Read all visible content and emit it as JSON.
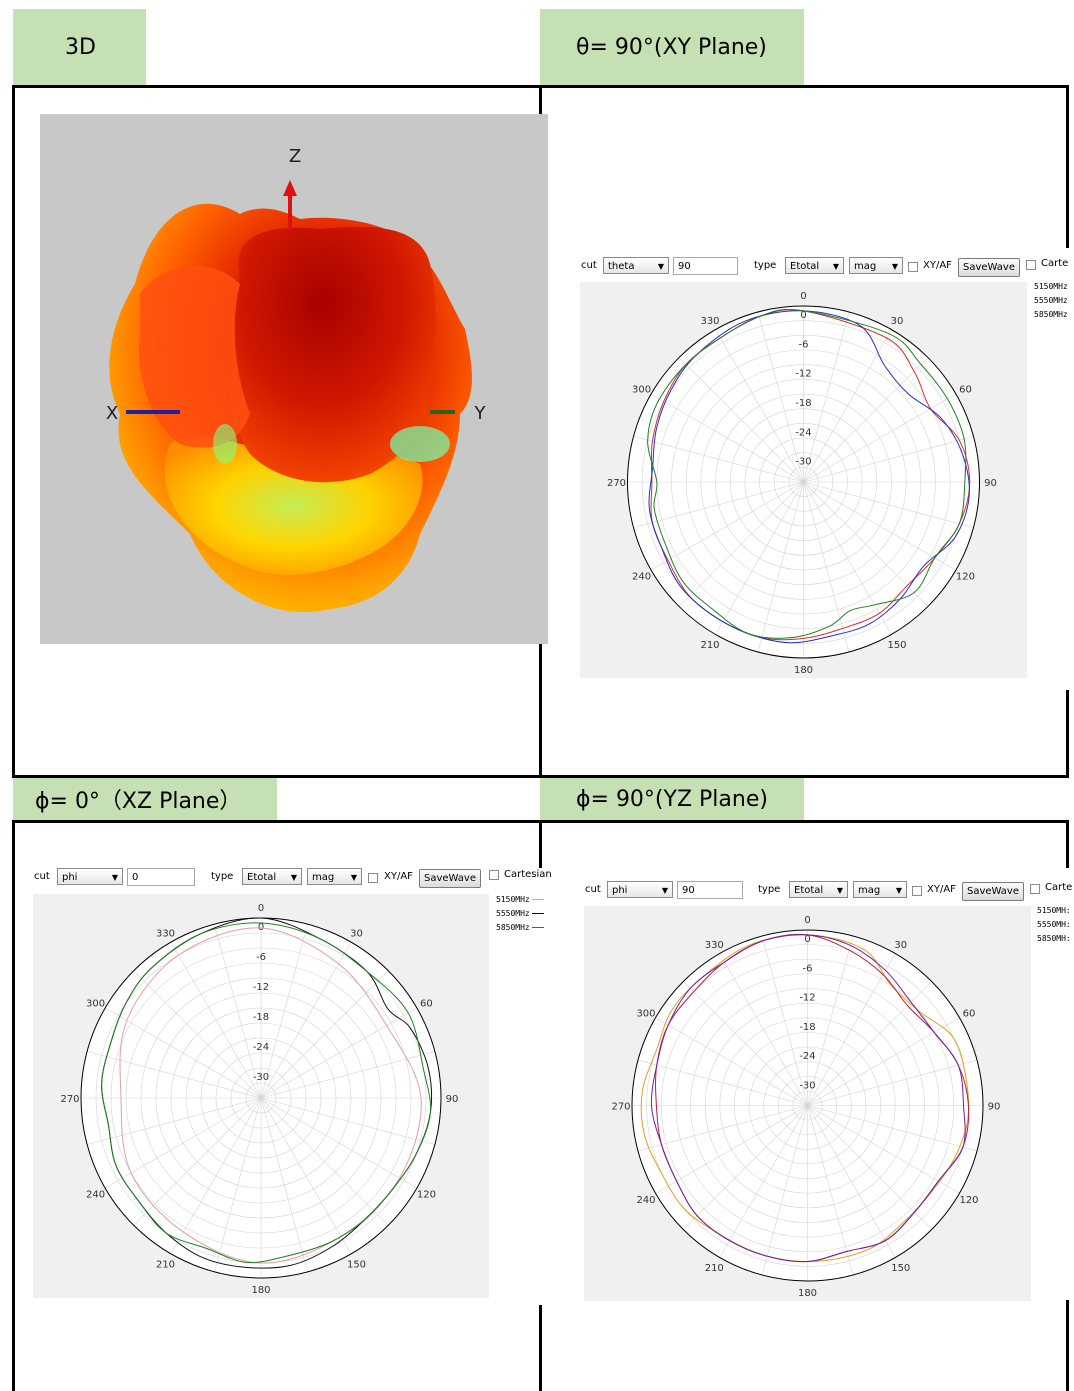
{
  "headers": {
    "p3d": "3D",
    "xy": "θ= 90°(XY Plane)",
    "xz": "ϕ= 0°（XZ Plane）",
    "yz": "ϕ= 90°(YZ Plane)"
  },
  "axes3d": {
    "x": "X",
    "y": "Y",
    "z": "Z"
  },
  "colors": {
    "header_bg": "#c5e0b3",
    "plot_bg": "#f0f0f0",
    "s5150_xy": "#d03030",
    "s5550_xy": "#2030c0",
    "s5850_xy": "#208020",
    "s5150_xz": "#e0a0a0",
    "s5550_xz": "#101010",
    "s5850_xz": "#208020",
    "s5150_yz": "#e0a020",
    "s5550_yz": "#b02040",
    "s5850_yz": "#7020a0"
  },
  "toolbar_common": {
    "cut_label": "cut",
    "type_label": "type",
    "type_value": "Etotal",
    "mag_value": "mag",
    "xyaf_label": "XY/AF",
    "savewave_label": "SaveWave"
  },
  "panel_xy": {
    "cut_value": "theta",
    "angle_value": "90",
    "cartesian_label": "Carte"
  },
  "panel_xz": {
    "cut_value": "phi",
    "angle_value": "0",
    "cartesian_label": "Cartesian"
  },
  "panel_yz": {
    "cut_value": "phi",
    "angle_value": "90",
    "cartesian_label": "Carte"
  },
  "legend_xy": [
    "5150MHz",
    "5550MHz",
    "5850MHz"
  ],
  "legend_xz": [
    "5150MHz",
    "5550MHz",
    "5850MHz"
  ],
  "legend_yz": [
    "5150MH:",
    "5550MH:",
    "5850MH:"
  ],
  "chart_data": [
    {
      "type": "polar",
      "title": "θ= 90°(XY Plane)",
      "angle_ticks": [
        "0",
        "30",
        "60",
        "90",
        "120",
        "150",
        "180",
        "210",
        "240",
        "270",
        "300",
        "330"
      ],
      "radial_ticks": [
        "0",
        "-6",
        "-12",
        "-18",
        "-24",
        "-30"
      ],
      "rlim": [
        -36,
        0
      ],
      "series": [
        {
          "name": "5150MHz",
          "values": [
            [
              0,
              -1
            ],
            [
              30,
              -2
            ],
            [
              45,
              -4
            ],
            [
              60,
              -6
            ],
            [
              75,
              -3
            ],
            [
              90,
              -2
            ],
            [
              105,
              -3
            ],
            [
              120,
              -5
            ],
            [
              135,
              -6
            ],
            [
              150,
              -5
            ],
            [
              165,
              -5
            ],
            [
              180,
              -4
            ],
            [
              195,
              -3
            ],
            [
              210,
              -3
            ],
            [
              225,
              -3
            ],
            [
              240,
              -4
            ],
            [
              255,
              -4
            ],
            [
              270,
              -5
            ],
            [
              285,
              -4
            ],
            [
              300,
              -3
            ],
            [
              315,
              -2
            ],
            [
              330,
              -2
            ],
            [
              345,
              -1
            ]
          ]
        },
        {
          "name": "5550MHz",
          "values": [
            [
              0,
              -1
            ],
            [
              20,
              -2
            ],
            [
              35,
              -7
            ],
            [
              50,
              -8
            ],
            [
              65,
              -5
            ],
            [
              80,
              -3
            ],
            [
              95,
              -2
            ],
            [
              110,
              -3
            ],
            [
              125,
              -6
            ],
            [
              140,
              -5
            ],
            [
              155,
              -4
            ],
            [
              170,
              -4
            ],
            [
              185,
              -3
            ],
            [
              200,
              -3
            ],
            [
              215,
              -3
            ],
            [
              230,
              -3
            ],
            [
              245,
              -4
            ],
            [
              260,
              -4
            ],
            [
              275,
              -5
            ],
            [
              290,
              -4
            ],
            [
              305,
              -3
            ],
            [
              320,
              -2
            ],
            [
              340,
              -1
            ]
          ]
        },
        {
          "name": "5850MHz",
          "values": [
            [
              0,
              -1
            ],
            [
              30,
              -1
            ],
            [
              45,
              -2
            ],
            [
              60,
              -2
            ],
            [
              75,
              -2
            ],
            [
              90,
              -3
            ],
            [
              105,
              -3
            ],
            [
              120,
              -5
            ],
            [
              135,
              -4
            ],
            [
              150,
              -7
            ],
            [
              160,
              -8
            ],
            [
              170,
              -6
            ],
            [
              185,
              -4
            ],
            [
              200,
              -3
            ],
            [
              215,
              -4
            ],
            [
              230,
              -4
            ],
            [
              245,
              -5
            ],
            [
              260,
              -5
            ],
            [
              270,
              -6
            ],
            [
              285,
              -3
            ],
            [
              300,
              -2
            ],
            [
              320,
              -2
            ],
            [
              345,
              -1
            ]
          ]
        }
      ]
    },
    {
      "type": "polar",
      "title": "ϕ= 0°（XZ Plane）",
      "angle_ticks": [
        "0",
        "30",
        "60",
        "90",
        "120",
        "150",
        "180",
        "210",
        "240",
        "270",
        "300",
        "330"
      ],
      "radial_ticks": [
        "0",
        "-6",
        "-12",
        "-18",
        "-24",
        "-30"
      ],
      "rlim": [
        -36,
        0
      ],
      "series": [
        {
          "name": "5150MHz",
          "values": [
            [
              0,
              -2
            ],
            [
              30,
              -5
            ],
            [
              60,
              -7
            ],
            [
              90,
              -4
            ],
            [
              120,
              -4
            ],
            [
              150,
              -4
            ],
            [
              180,
              -3
            ],
            [
              210,
              -5
            ],
            [
              240,
              -6
            ],
            [
              270,
              -8
            ],
            [
              300,
              -5
            ],
            [
              330,
              -3
            ]
          ]
        },
        {
          "name": "5550MHz",
          "values": [
            [
              0,
              0
            ],
            [
              20,
              -2
            ],
            [
              40,
              -3
            ],
            [
              55,
              -5
            ],
            [
              65,
              -3
            ],
            [
              80,
              -2
            ],
            [
              95,
              -2
            ],
            [
              110,
              -3
            ],
            [
              125,
              -4
            ],
            [
              140,
              -4
            ],
            [
              155,
              -3
            ],
            [
              170,
              -2
            ],
            [
              185,
              -2
            ],
            [
              200,
              -2
            ],
            [
              215,
              -3
            ],
            [
              230,
              -4
            ],
            [
              245,
              -4
            ],
            [
              260,
              -5
            ],
            [
              275,
              -4
            ],
            [
              290,
              -4
            ],
            [
              305,
              -3
            ],
            [
              320,
              -2
            ],
            [
              340,
              -1
            ]
          ]
        },
        {
          "name": "5850MHz",
          "values": [
            [
              0,
              -1
            ],
            [
              20,
              -2
            ],
            [
              40,
              -3
            ],
            [
              60,
              -2
            ],
            [
              80,
              -3
            ],
            [
              95,
              -2
            ],
            [
              110,
              -3
            ],
            [
              125,
              -4
            ],
            [
              140,
              -4
            ],
            [
              155,
              -4
            ],
            [
              170,
              -4
            ],
            [
              185,
              -3
            ],
            [
              200,
              -4
            ],
            [
              215,
              -3
            ],
            [
              230,
              -4
            ],
            [
              245,
              -4
            ],
            [
              260,
              -5
            ],
            [
              275,
              -4
            ],
            [
              290,
              -4
            ],
            [
              305,
              -3
            ],
            [
              320,
              -2
            ],
            [
              340,
              -1
            ]
          ]
        }
      ]
    },
    {
      "type": "polar",
      "title": "ϕ= 90°(YZ Plane)",
      "angle_ticks": [
        "0",
        "30",
        "60",
        "90",
        "120",
        "150",
        "180",
        "210",
        "240",
        "270",
        "300",
        "330"
      ],
      "radial_ticks": [
        "0",
        "-6",
        "-12",
        "-18",
        "-24",
        "-30"
      ],
      "rlim": [
        -36,
        0
      ],
      "series": [
        {
          "name": "5150MHz",
          "values": [
            [
              0,
              -1
            ],
            [
              20,
              -2
            ],
            [
              35,
              -6
            ],
            [
              50,
              -6
            ],
            [
              65,
              -3
            ],
            [
              80,
              -3
            ],
            [
              95,
              -3
            ],
            [
              110,
              -4
            ],
            [
              125,
              -5
            ],
            [
              140,
              -5
            ],
            [
              155,
              -4
            ],
            [
              170,
              -4
            ],
            [
              185,
              -4
            ],
            [
              200,
              -4
            ],
            [
              215,
              -4
            ],
            [
              230,
              -3
            ],
            [
              245,
              -3
            ],
            [
              260,
              -2
            ],
            [
              275,
              -2
            ],
            [
              290,
              -3
            ],
            [
              305,
              -2
            ],
            [
              320,
              -2
            ],
            [
              340,
              -1
            ]
          ]
        },
        {
          "name": "5550MHz",
          "values": [
            [
              0,
              -1
            ],
            [
              15,
              -3
            ],
            [
              30,
              -5
            ],
            [
              45,
              -7
            ],
            [
              60,
              -6
            ],
            [
              75,
              -4
            ],
            [
              90,
              -3
            ],
            [
              105,
              -3
            ],
            [
              120,
              -5
            ],
            [
              135,
              -5
            ],
            [
              150,
              -4
            ],
            [
              165,
              -5
            ],
            [
              180,
              -4
            ],
            [
              195,
              -4
            ],
            [
              210,
              -4
            ],
            [
              225,
              -4
            ],
            [
              240,
              -5
            ],
            [
              255,
              -5
            ],
            [
              270,
              -5
            ],
            [
              285,
              -4
            ],
            [
              300,
              -3
            ],
            [
              315,
              -3
            ],
            [
              330,
              -2
            ],
            [
              345,
              -1
            ]
          ]
        },
        {
          "name": "5850MHz",
          "values": [
            [
              0,
              -1
            ],
            [
              15,
              -2
            ],
            [
              30,
              -4
            ],
            [
              45,
              -6
            ],
            [
              60,
              -6
            ],
            [
              75,
              -4
            ],
            [
              90,
              -4
            ],
            [
              105,
              -3
            ],
            [
              120,
              -5
            ],
            [
              135,
              -5
            ],
            [
              150,
              -4
            ],
            [
              165,
              -5
            ],
            [
              180,
              -4
            ],
            [
              195,
              -4
            ],
            [
              210,
              -4
            ],
            [
              225,
              -4
            ],
            [
              240,
              -5
            ],
            [
              255,
              -5
            ],
            [
              270,
              -4
            ],
            [
              285,
              -4
            ],
            [
              300,
              -3
            ],
            [
              315,
              -2
            ],
            [
              330,
              -2
            ],
            [
              345,
              -1
            ]
          ]
        }
      ]
    }
  ]
}
